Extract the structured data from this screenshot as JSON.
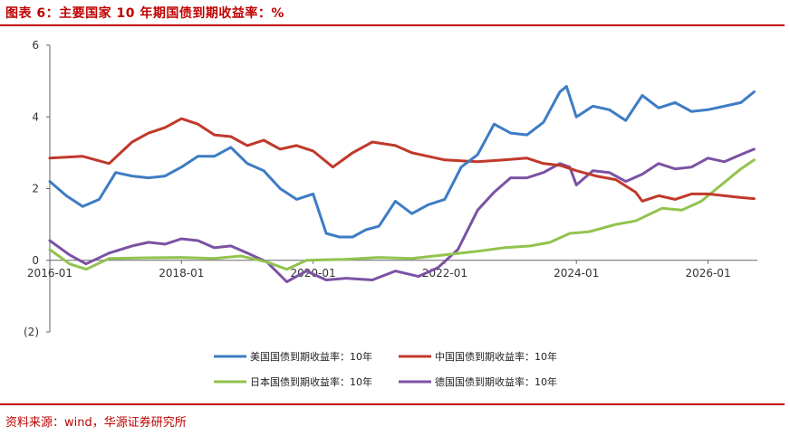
{
  "header": {
    "title": "图表 6：主要国家 10 年期国债到期收益率：%"
  },
  "footer": {
    "source": "资料来源：wind，华源证券研究所"
  },
  "chart_data": {
    "type": "line",
    "title": "图表 6：主要国家 10 年期国债到期收益率：%",
    "xlabel": "",
    "ylabel": "",
    "xlim": [
      2016.0,
      2026.75
    ],
    "ylim": [
      -2,
      6
    ],
    "y_ticks": [
      6,
      4,
      2,
      0,
      -2
    ],
    "y_tick_labels": [
      "6",
      "4",
      "2",
      "0",
      "(2)"
    ],
    "x_ticks": [
      2016.0,
      2018.0,
      2020.0,
      2022.0,
      2024.0,
      2026.0
    ],
    "x_tick_labels": [
      "2016-01",
      "2018-01",
      "2020-01",
      "2022-01",
      "2024-01",
      "2026-01"
    ],
    "grid": false,
    "legend_position": "bottom",
    "series": [
      {
        "name": "美国国债到期收益率：10年",
        "color": "#3d7cc4",
        "x": [
          2016.0,
          2016.25,
          2016.5,
          2016.75,
          2017.0,
          2017.25,
          2017.5,
          2017.75,
          2018.0,
          2018.25,
          2018.5,
          2018.75,
          2019.0,
          2019.25,
          2019.5,
          2019.75,
          2020.0,
          2020.2,
          2020.4,
          2020.6,
          2020.8,
          2021.0,
          2021.25,
          2021.5,
          2021.75,
          2022.0,
          2022.25,
          2022.5,
          2022.75,
          2023.0,
          2023.25,
          2023.5,
          2023.75,
          2023.85,
          2024.0,
          2024.25,
          2024.5,
          2024.75,
          2025.0,
          2025.25,
          2025.5,
          2025.75,
          2026.0,
          2026.25,
          2026.5,
          2026.7
        ],
        "y": [
          2.2,
          1.8,
          1.5,
          1.7,
          2.45,
          2.35,
          2.3,
          2.35,
          2.6,
          2.9,
          2.9,
          3.15,
          2.7,
          2.5,
          2.0,
          1.7,
          1.85,
          0.75,
          0.65,
          0.65,
          0.85,
          0.95,
          1.65,
          1.3,
          1.55,
          1.7,
          2.6,
          2.95,
          3.8,
          3.55,
          3.5,
          3.85,
          4.7,
          4.85,
          4.0,
          4.3,
          4.2,
          3.9,
          4.6,
          4.25,
          4.4,
          4.15,
          4.2,
          4.3,
          4.4,
          4.7
        ]
      },
      {
        "name": "中国国债到期收益率：10年",
        "color": "#c0392b",
        "x": [
          2016.0,
          2016.5,
          2016.9,
          2017.25,
          2017.5,
          2017.75,
          2018.0,
          2018.25,
          2018.5,
          2018.75,
          2019.0,
          2019.25,
          2019.5,
          2019.75,
          2020.0,
          2020.3,
          2020.6,
          2020.9,
          2021.25,
          2021.5,
          2021.75,
          2022.0,
          2022.5,
          2022.9,
          2023.25,
          2023.5,
          2023.75,
          2024.0,
          2024.3,
          2024.6,
          2024.9,
          2025.0,
          2025.25,
          2025.5,
          2025.75,
          2026.0,
          2026.25,
          2026.5,
          2026.7
        ],
        "y": [
          2.85,
          2.9,
          2.7,
          3.3,
          3.55,
          3.7,
          3.95,
          3.8,
          3.5,
          3.45,
          3.2,
          3.35,
          3.1,
          3.2,
          3.05,
          2.6,
          3.0,
          3.3,
          3.2,
          3.0,
          2.9,
          2.8,
          2.75,
          2.8,
          2.85,
          2.7,
          2.65,
          2.5,
          2.35,
          2.25,
          1.9,
          1.65,
          1.8,
          1.7,
          1.85,
          1.85,
          1.8,
          1.75,
          1.72
        ]
      },
      {
        "name": "日本国债到期收益率：10年",
        "color": "#92c34e",
        "x": [
          2016.0,
          2016.3,
          2016.55,
          2016.9,
          2017.5,
          2018.0,
          2018.5,
          2018.9,
          2019.3,
          2019.6,
          2019.9,
          2020.5,
          2021.0,
          2021.5,
          2022.0,
          2022.5,
          2022.9,
          2023.3,
          2023.6,
          2023.9,
          2024.2,
          2024.6,
          2024.9,
          2025.3,
          2025.6,
          2025.9,
          2026.2,
          2026.5,
          2026.7
        ],
        "y": [
          0.3,
          -0.1,
          -0.25,
          0.05,
          0.07,
          0.08,
          0.05,
          0.12,
          -0.05,
          -0.25,
          0.0,
          0.03,
          0.08,
          0.05,
          0.15,
          0.25,
          0.35,
          0.4,
          0.5,
          0.75,
          0.8,
          1.0,
          1.1,
          1.45,
          1.4,
          1.65,
          2.1,
          2.55,
          2.8
        ]
      },
      {
        "name": "德国国债到期收益率：10年",
        "color": "#7b52a3",
        "x": [
          2016.0,
          2016.3,
          2016.55,
          2016.9,
          2017.25,
          2017.5,
          2017.75,
          2018.0,
          2018.25,
          2018.5,
          2018.75,
          2019.0,
          2019.3,
          2019.6,
          2019.9,
          2020.2,
          2020.5,
          2020.9,
          2021.25,
          2021.6,
          2021.9,
          2022.2,
          2022.5,
          2022.75,
          2023.0,
          2023.25,
          2023.5,
          2023.75,
          2023.9,
          2024.0,
          2024.25,
          2024.5,
          2024.75,
          2025.0,
          2025.25,
          2025.5,
          2025.75,
          2026.0,
          2026.25,
          2026.5,
          2026.7
        ],
        "y": [
          0.55,
          0.15,
          -0.1,
          0.2,
          0.4,
          0.5,
          0.45,
          0.6,
          0.55,
          0.35,
          0.4,
          0.2,
          -0.05,
          -0.6,
          -0.3,
          -0.55,
          -0.5,
          -0.55,
          -0.3,
          -0.45,
          -0.2,
          0.3,
          1.4,
          1.9,
          2.3,
          2.3,
          2.45,
          2.7,
          2.6,
          2.1,
          2.5,
          2.45,
          2.2,
          2.4,
          2.7,
          2.55,
          2.6,
          2.85,
          2.75,
          2.95,
          3.1
        ]
      }
    ]
  }
}
